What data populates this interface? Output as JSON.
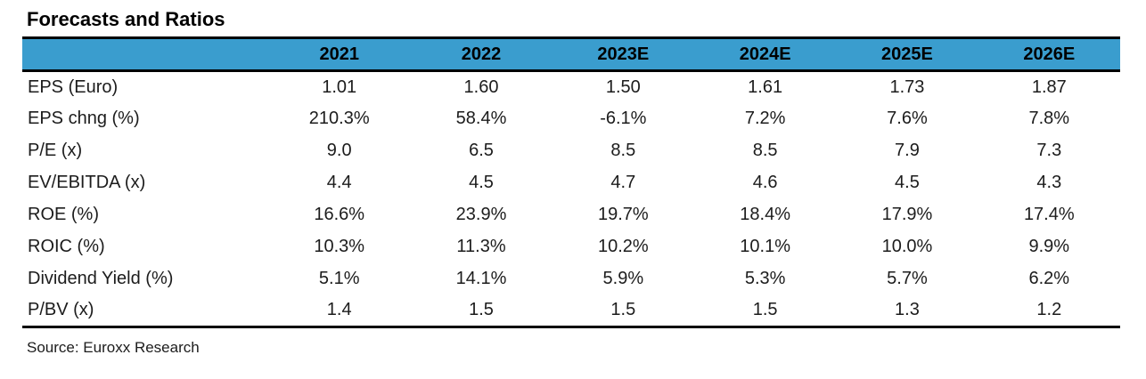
{
  "title": "Forecasts and Ratios",
  "table": {
    "header_bg_color": "#3A9DCE",
    "header_text_color": "#000000",
    "columns": [
      "",
      "2021",
      "2022",
      "2023E",
      "2024E",
      "2025E",
      "2026E"
    ],
    "rows": [
      {
        "label": "EPS (Euro)",
        "values": [
          "1.01",
          "1.60",
          "1.50",
          "1.61",
          "1.73",
          "1.87"
        ]
      },
      {
        "label": "EPS chng (%)",
        "values": [
          "210.3%",
          "58.4%",
          "-6.1%",
          "7.2%",
          "7.6%",
          "7.8%"
        ]
      },
      {
        "label": "P/E (x)",
        "values": [
          "9.0",
          "6.5",
          "8.5",
          "8.5",
          "7.9",
          "7.3"
        ]
      },
      {
        "label": "EV/EBITDA (x)",
        "values": [
          "4.4",
          "4.5",
          "4.7",
          "4.6",
          "4.5",
          "4.3"
        ]
      },
      {
        "label": "ROE (%)",
        "values": [
          "16.6%",
          "23.9%",
          "19.7%",
          "18.4%",
          "17.9%",
          "17.4%"
        ]
      },
      {
        "label": "ROIC (%)",
        "values": [
          "10.3%",
          "11.3%",
          "10.2%",
          "10.1%",
          "10.0%",
          "9.9%"
        ]
      },
      {
        "label": "Dividend Yield (%)",
        "values": [
          "5.1%",
          "14.1%",
          "5.9%",
          "5.3%",
          "5.7%",
          "6.2%"
        ]
      },
      {
        "label": "P/BV (x)",
        "values": [
          "1.4",
          "1.5",
          "1.5",
          "1.5",
          "1.3",
          "1.2"
        ]
      }
    ]
  },
  "source": "Source: Euroxx Research"
}
